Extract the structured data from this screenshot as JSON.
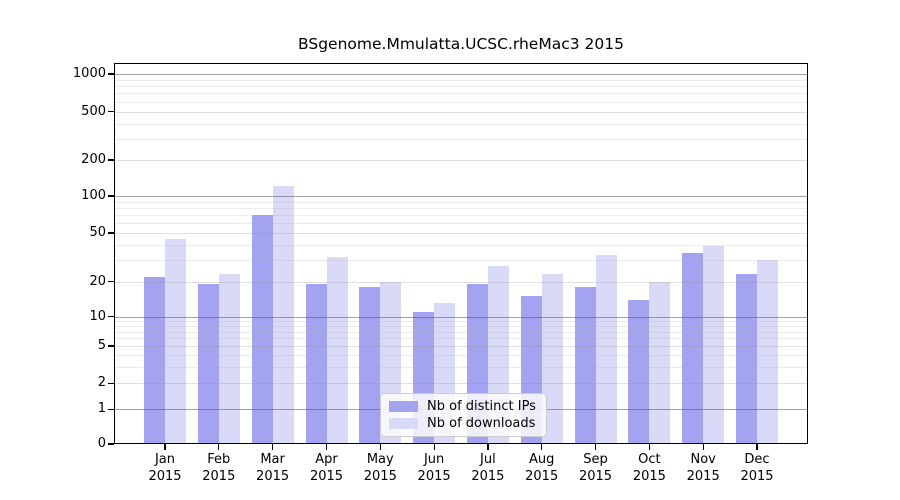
{
  "title": "BSgenome.Mmulatta.UCSC.rheMac3 2015",
  "chart_data": {
    "type": "bar",
    "title": "BSgenome.Mmulatta.UCSC.rheMac3 2015",
    "year": "2015",
    "categories": [
      "Jan 2015",
      "Feb 2015",
      "Mar 2015",
      "Apr 2015",
      "May 2015",
      "Jun 2015",
      "Jul 2015",
      "Aug 2015",
      "Sep 2015",
      "Oct 2015",
      "Nov 2015",
      "Dec 2015"
    ],
    "month_labels": [
      "Jan",
      "Feb",
      "Mar",
      "Apr",
      "May",
      "Jun",
      "Jul",
      "Aug",
      "Sep",
      "Oct",
      "Nov",
      "Dec"
    ],
    "series": [
      {
        "name": "Nb of distinct IPs",
        "color": "#a3a3f1",
        "values": [
          22,
          19,
          70,
          19,
          18,
          11,
          19,
          15,
          18,
          14,
          34,
          23
        ]
      },
      {
        "name": "Nb of downloads",
        "color": "#d9d9f8",
        "values": [
          45,
          23,
          122,
          32,
          20,
          13,
          27,
          23,
          33,
          20,
          39,
          30
        ]
      }
    ],
    "yticks": [
      0,
      1,
      2,
      5,
      10,
      20,
      50,
      100,
      200,
      500,
      1000
    ],
    "ylim": [
      0,
      1400
    ],
    "yscale": "log-like with zero baseline",
    "grid": true,
    "legend_position": "inside bottom-center",
    "xlabel": "",
    "ylabel": ""
  },
  "colors": {
    "bar_distinct_ips": "#a3a3f1",
    "bar_downloads": "#d9d9f8",
    "grid_major": "#8c8c8c",
    "grid_minor": "#e9e9e9",
    "axis": "#000000",
    "background": "#ffffff"
  }
}
